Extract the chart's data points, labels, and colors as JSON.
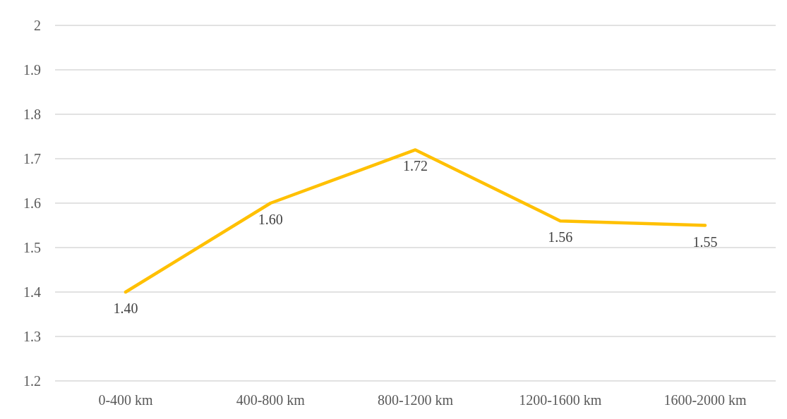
{
  "chart_data": {
    "type": "line",
    "categories": [
      "0-400 km",
      "400-800 km",
      "800-1200 km",
      "1200-1600 km",
      "1600-2000 km"
    ],
    "series": [
      {
        "color": "#ffc000",
        "values": [
          1.4,
          1.6,
          1.72,
          1.56,
          1.55
        ],
        "value_labels": [
          "1.40",
          "1.60",
          "1.72",
          "1.56",
          "1.55"
        ]
      }
    ],
    "ylim": [
      1.2,
      2
    ],
    "yticks": [
      1.2,
      1.3,
      1.4,
      1.5,
      1.6,
      1.7,
      1.8,
      1.9,
      2
    ],
    "grid": "y",
    "legend": false,
    "marker": "none",
    "line_style": "solid"
  }
}
